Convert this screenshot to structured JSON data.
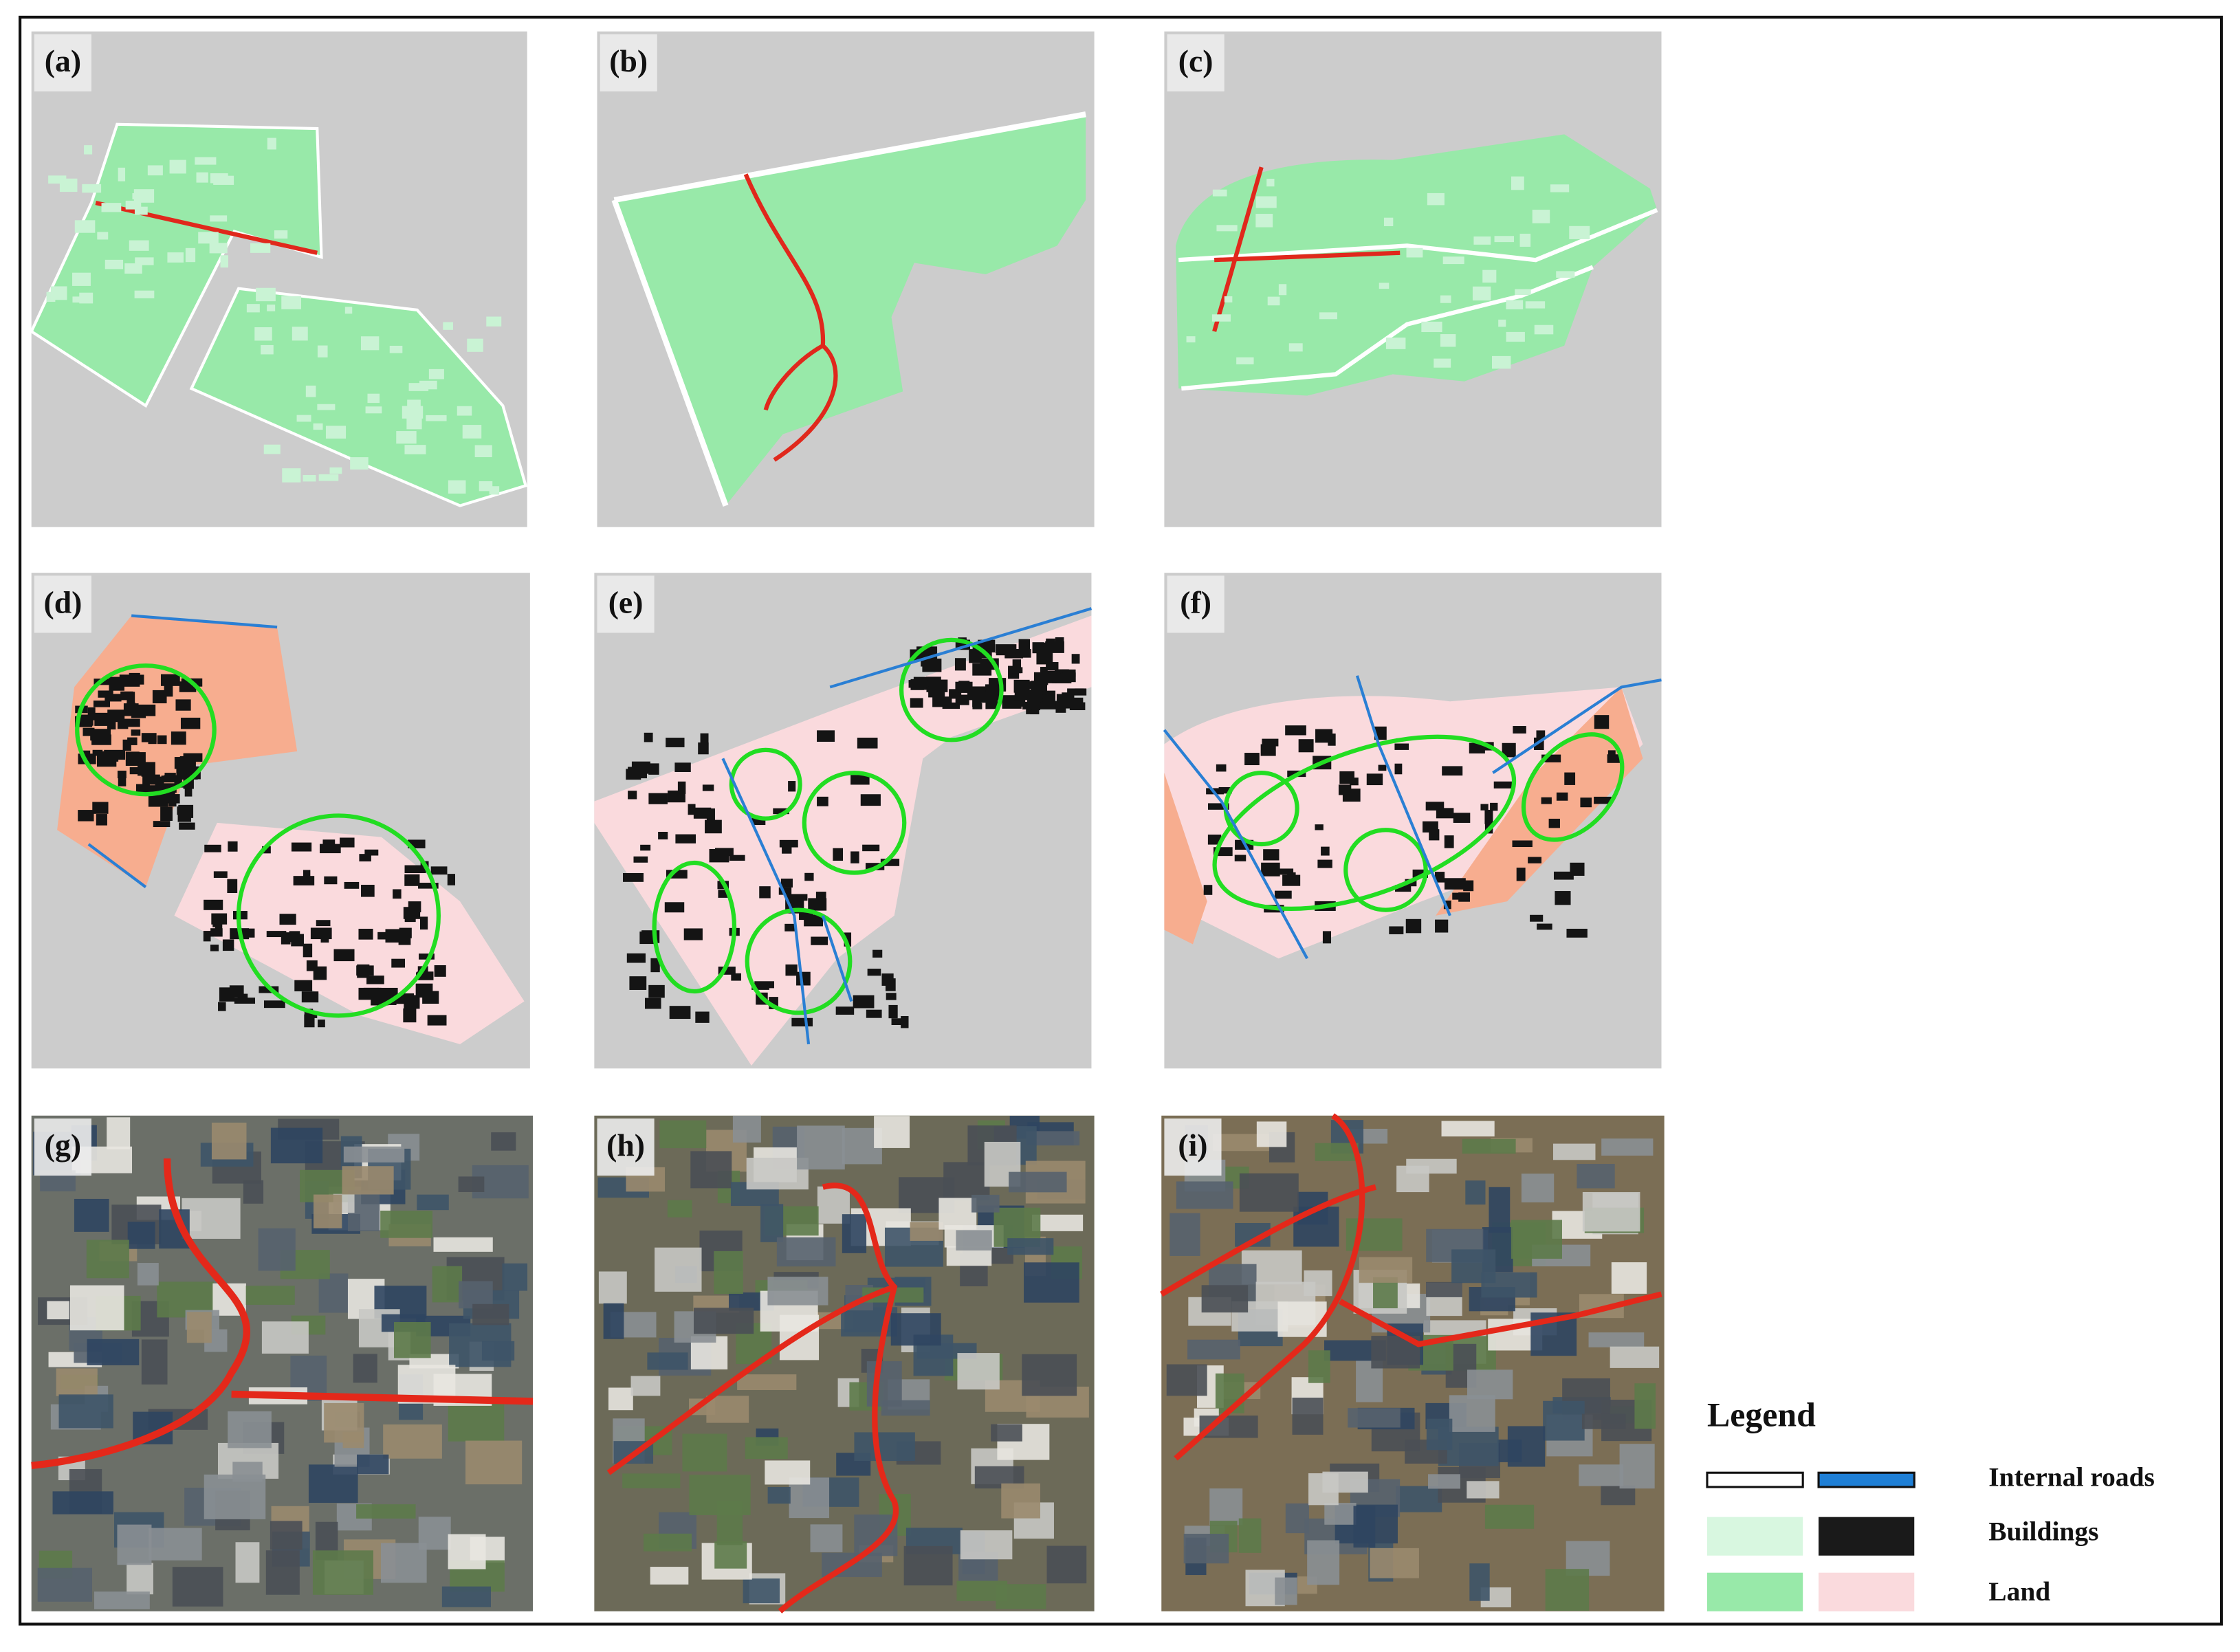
{
  "panels": [
    {
      "label": "(a)"
    },
    {
      "label": "(b)"
    },
    {
      "label": "(c)"
    },
    {
      "label": "(d)"
    },
    {
      "label": "(e)"
    },
    {
      "label": "(f)"
    },
    {
      "label": "(g)"
    },
    {
      "label": "(h)"
    },
    {
      "label": "(i)"
    }
  ],
  "legend": {
    "title": "Legend",
    "items": [
      {
        "label": "Internal roads"
      },
      {
        "label": "Buildings"
      },
      {
        "label": "Land"
      }
    ]
  }
}
